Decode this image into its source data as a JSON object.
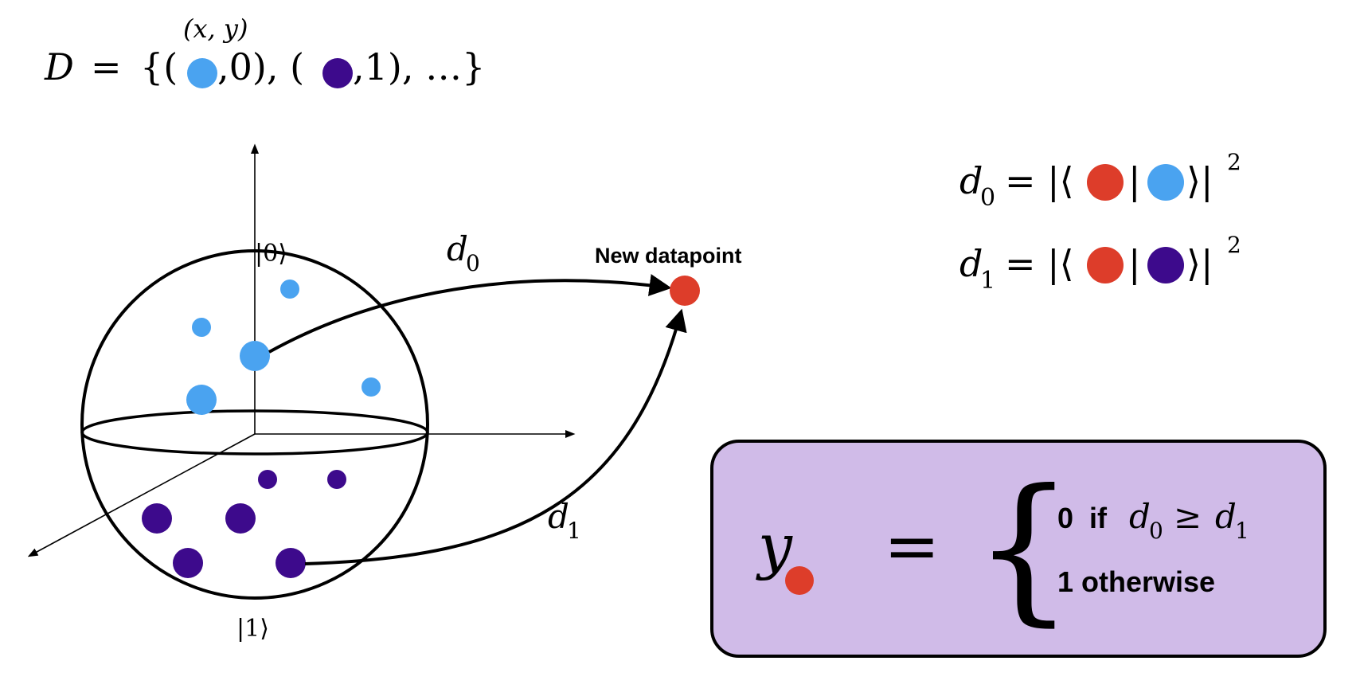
{
  "dataset": {
    "lhs": "D",
    "eq": "=",
    "open": "{(",
    "sep1": ",0), (",
    "sep2": ",1), …}",
    "xy_label": "(x, y)"
  },
  "sphere": {
    "ket_top": "|0⟩",
    "ket_bottom": "|1⟩"
  },
  "arrows": {
    "d0_label": "d",
    "d0_sub": "0",
    "d1_label": "d",
    "d1_sub": "1"
  },
  "new_point_label": "New datapoint",
  "distances": {
    "d0": {
      "lhs": "d",
      "sub": "0",
      "eq": "= |⟨",
      "bar": "|",
      "close": "⟩|",
      "power": "2"
    },
    "d1": {
      "lhs": "d",
      "sub": "1",
      "eq": "= |⟨",
      "bar": "|",
      "close": "⟩|",
      "power": "2"
    }
  },
  "classifier": {
    "y_label": "y",
    "eq": "=",
    "brace": "{",
    "case0_prefix": "0  if",
    "case0_d0": "d",
    "case0_d0_sub": "0",
    "case0_ge": "≥",
    "case0_d1": "d",
    "case0_d1_sub": "1",
    "case1": "1 otherwise"
  },
  "colors": {
    "class0": "#4aa3f0",
    "class1": "#3d0a8c",
    "new_point": "#dd3d2a",
    "box_fill": "#d0bbe8",
    "stroke": "#000000"
  }
}
